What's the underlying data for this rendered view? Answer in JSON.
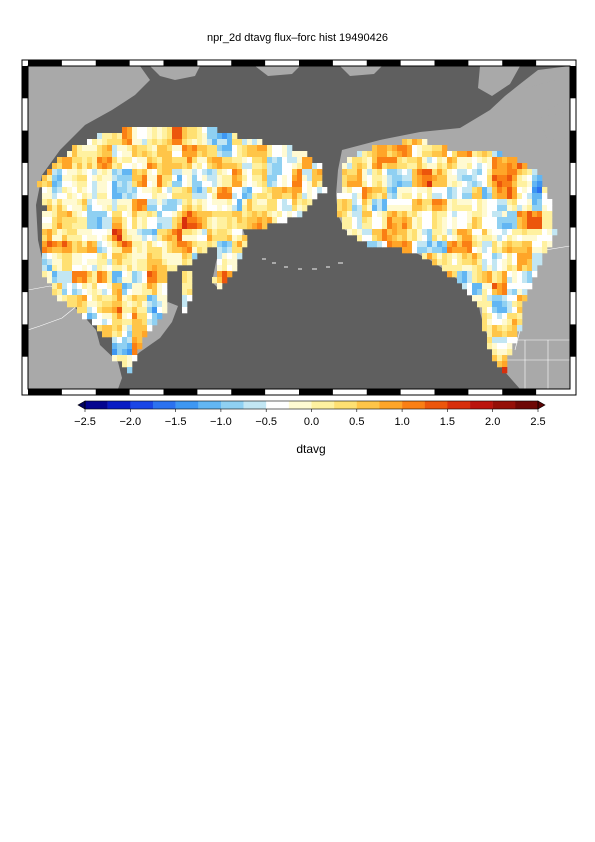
{
  "page": {
    "title": "npr_2d dtavg flux–forc hist 19490426"
  },
  "map": {
    "ocean_color": "#5f5f5f",
    "land_color": "#a9a9a9",
    "border_color": "#ffffff",
    "frame_color": "#000000",
    "projection_region": "North Pacific (Asia – Bering – Alaska – Canada)"
  },
  "colorbar": {
    "label": "dtavg",
    "ticks": [
      "−2.5",
      "−2.0",
      "−1.5",
      "−1.0",
      "−0.5",
      "0.0",
      "0.5",
      "1.0",
      "1.5",
      "2.0",
      "2.5"
    ],
    "range": [
      -2.5,
      2.5
    ],
    "step": 0.25,
    "extend": "both",
    "colors": [
      "#05058f",
      "#0a1cc4",
      "#1a46e6",
      "#2c72f0",
      "#3e97f2",
      "#62b6f3",
      "#8fd0f2",
      "#c2e6f3",
      "#ffffff",
      "#fffad2",
      "#fff1a0",
      "#ffe072",
      "#ffc548",
      "#ffa528",
      "#fa7f14",
      "#ec560c",
      "#d8300c",
      "#bb140d",
      "#951008",
      "#6e0805"
    ],
    "below_color": "#040460",
    "above_color": "#5a0404"
  }
}
